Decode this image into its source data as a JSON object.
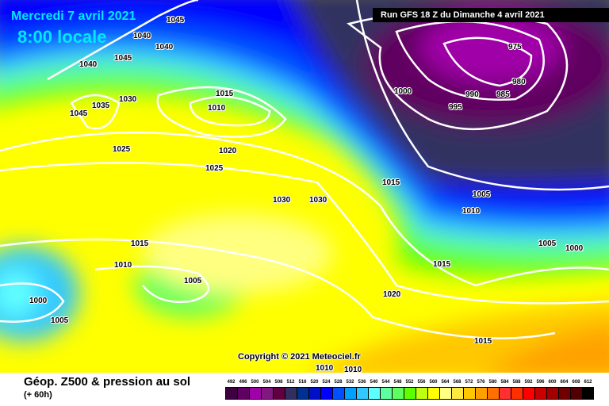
{
  "header": {
    "date": "Mercredi 7 avril 2021",
    "local_time": "8:00 locale",
    "run": "Run GFS 18 Z du Dimanche 4 avril 2021"
  },
  "map": {
    "copyright": "Copyright © 2021 Meteociel.fr",
    "isobar_labels": [
      "1045",
      "1040",
      "1040",
      "1045",
      "1040",
      "1045",
      "1035",
      "1030",
      "1015",
      "1010",
      "1025",
      "1020",
      "1025",
      "1030",
      "1030",
      "1015",
      "1000",
      "995",
      "990",
      "985",
      "980",
      "975",
      "1005",
      "1010",
      "1015",
      "1005",
      "1000",
      "1020",
      "1015",
      "1010",
      "1005",
      "1000",
      "1005",
      "1015",
      "1010",
      "1010"
    ]
  },
  "footer": {
    "title": "Géop. Z500 & pression au sol",
    "subtitle": "(+ 60h)"
  },
  "legend": {
    "values": [
      "492",
      "496",
      "500",
      "504",
      "508",
      "512",
      "516",
      "520",
      "524",
      "528",
      "532",
      "536",
      "540",
      "544",
      "548",
      "552",
      "556",
      "560",
      "564",
      "568",
      "572",
      "576",
      "580",
      "584",
      "588",
      "592",
      "596",
      "600",
      "604",
      "608",
      "612"
    ],
    "colors": [
      "#3d0040",
      "#600060",
      "#a000a8",
      "#801880",
      "#600040",
      "#303060",
      "#003090",
      "#0010c8",
      "#0000ff",
      "#0050ff",
      "#00a0ff",
      "#30c8ff",
      "#60ffff",
      "#60ffa0",
      "#60ff60",
      "#60ff00",
      "#c0ff10",
      "#ffff00",
      "#ffff80",
      "#ffe840",
      "#ffc800",
      "#ffa000",
      "#ff7000",
      "#ff3030",
      "#ff3000",
      "#ff0000",
      "#c80000",
      "#a00000",
      "#700000",
      "#500000",
      "#000000"
    ]
  }
}
